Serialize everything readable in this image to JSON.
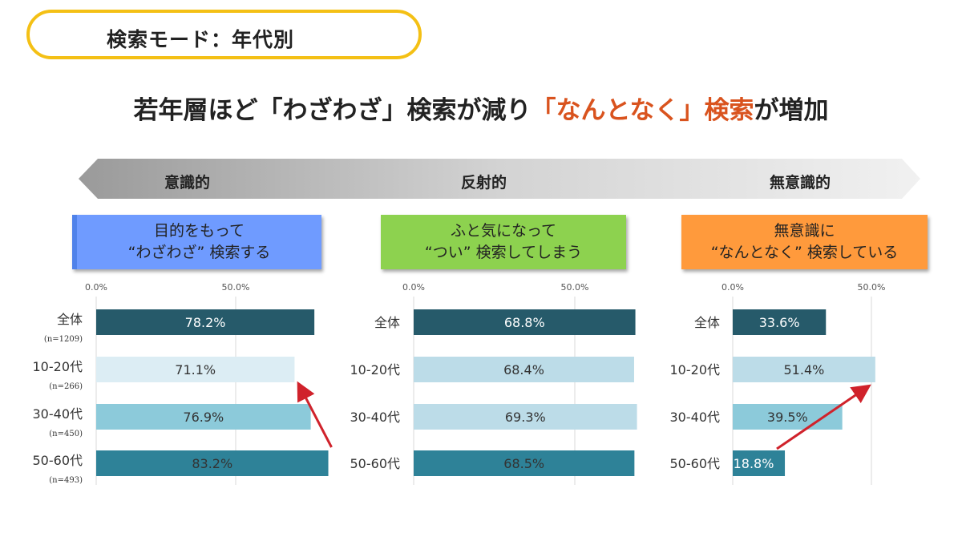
{
  "mode_label": "検索モード：年代別",
  "headline": {
    "part1": "若年層ほど「わざわざ」検索が減り",
    "part2": "「なんとなく」検索",
    "part3": "が増加"
  },
  "spectrum": {
    "left": "意識的",
    "center": "反射的",
    "right": "無意識的"
  },
  "categories": [
    {
      "line1": "目的をもって",
      "line2": "“わざわざ” 検索する"
    },
    {
      "line1": "ふと気になって",
      "line2": "“つい” 検索してしまう"
    },
    {
      "line1": "無意識に",
      "line2": "“なんとなく” 検索している"
    }
  ],
  "colors": {
    "bar_dark": "#265a6a",
    "bar_light_blue": "#bcdce8",
    "bar_pale": "#dcedf4",
    "bar_mid": "#8ccada",
    "bar_teal": "#2e8298",
    "trend_arrow": "#d0222b",
    "highlight": "#d9531e",
    "pill_border": "#f4c015"
  },
  "chart_data": [
    {
      "type": "bar",
      "orientation": "horizontal",
      "categories": [
        "全体",
        "10-20代",
        "30-40代",
        "50-60代"
      ],
      "sample_sizes": [
        "(n=1209)",
        "(n=266)",
        "(n=450)",
        "(n=493)"
      ],
      "values": [
        78.2,
        71.1,
        76.9,
        83.2
      ],
      "value_labels": [
        "78.2%",
        "71.1%",
        "76.9%",
        "83.2%"
      ],
      "bar_colors": [
        "#265a6a",
        "#dcedf4",
        "#8ccada",
        "#2e8298"
      ],
      "xlim": [
        0,
        80
      ],
      "ticks": [
        0,
        50
      ],
      "tick_labels": [
        "0.0%",
        "50.0%"
      ],
      "trend_arrow": "from 50-60代 up to 10-20代"
    },
    {
      "type": "bar",
      "orientation": "horizontal",
      "categories": [
        "全体",
        "10-20代",
        "30-40代",
        "50-60代"
      ],
      "values": [
        68.8,
        68.4,
        69.3,
        68.5
      ],
      "value_labels": [
        "68.8%",
        "68.4%",
        "69.3%",
        "68.5%"
      ],
      "bar_colors": [
        "#265a6a",
        "#bcdce8",
        "#bcdce8",
        "#2e8298"
      ],
      "xlim": [
        0,
        70
      ],
      "ticks": [
        0,
        50
      ],
      "tick_labels": [
        "0.0%",
        "50.0%"
      ]
    },
    {
      "type": "bar",
      "orientation": "horizontal",
      "categories": [
        "全体",
        "10-20代",
        "30-40代",
        "50-60代"
      ],
      "values": [
        33.6,
        51.4,
        39.5,
        18.8
      ],
      "value_labels": [
        "33.6%",
        "51.4%",
        "39.5%",
        "18.8%"
      ],
      "bar_colors": [
        "#265a6a",
        "#bcdce8",
        "#8ccada",
        "#2e8298"
      ],
      "xlim": [
        0,
        60
      ],
      "ticks": [
        0,
        50
      ],
      "tick_labels": [
        "0.0%",
        "50.0%"
      ],
      "trend_arrow": "from 50-60代 up to 10-20代"
    }
  ]
}
